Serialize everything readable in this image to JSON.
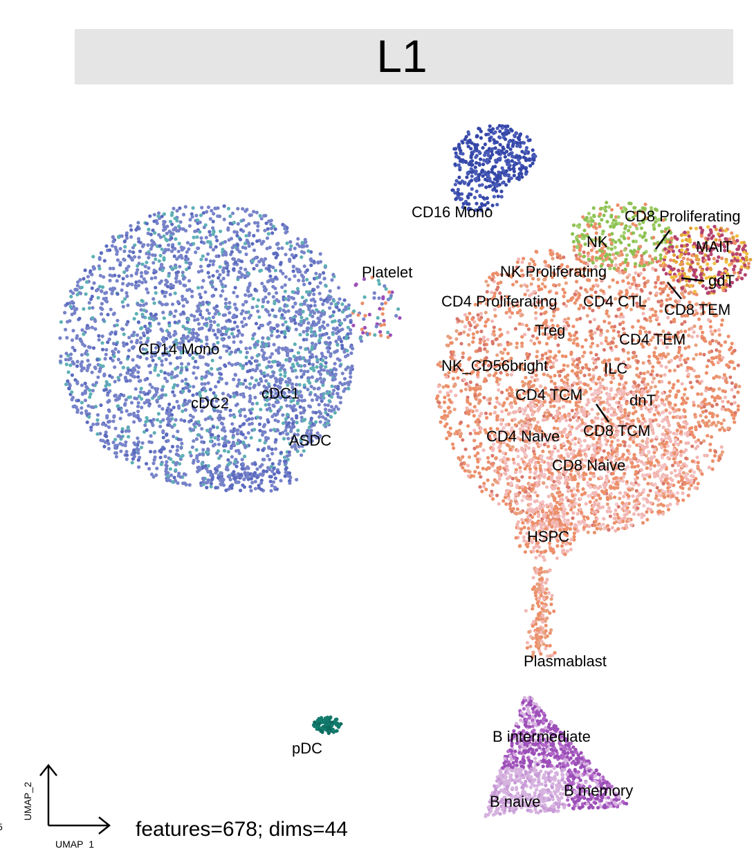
{
  "chart_data": {
    "type": "scatter",
    "title": "L1",
    "xlabel": "UMAP_1",
    "ylabel": "UMAP_2",
    "caption": "features=678; dims=44",
    "edge_mark": "5",
    "grid": false,
    "legend": "none",
    "cluster_labels": [
      "CD16 Mono",
      "CD8 Proliferating",
      "NK",
      "MAIT",
      "NK Proliferating",
      "gdT",
      "Platelet",
      "CD4 Proliferating",
      "CD4 CTL",
      "CD8 TEM",
      "Treg",
      "CD4 TEM",
      "CD14 Mono",
      "NK_CD56bright",
      "ILC",
      "cDC1",
      "CD4 TCM",
      "dnT",
      "cDC2",
      "ASDC",
      "CD4 Naive",
      "CD8 TCM",
      "CD8 Naive",
      "HSPC",
      "Plasmablast",
      "B intermediate",
      "pDC",
      "B memory",
      "B naive"
    ],
    "colors": {
      "mono14": "#7783c9",
      "mono16": "#3547a8",
      "t_cells": "#ec8f6a",
      "naive_t": "#f2b8b5",
      "nk": "#8cc152",
      "mait": "#e0a23b",
      "cd8tem": "#b5436e",
      "b_cells": "#9c4fb8",
      "b_naive": "#d7b3e0",
      "pdc": "#127b6c",
      "dc": "#5eb0b5",
      "strip": "#e5e5e5"
    }
  }
}
